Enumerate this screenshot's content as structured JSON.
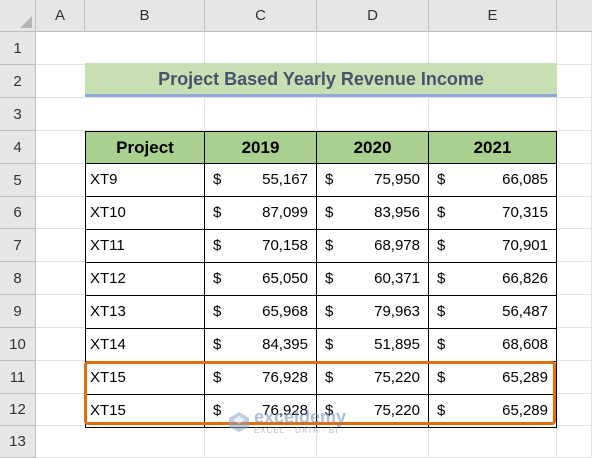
{
  "columns": [
    "A",
    "B",
    "C",
    "D",
    "E"
  ],
  "rows": [
    "1",
    "2",
    "3",
    "4",
    "5",
    "6",
    "7",
    "8",
    "9",
    "10",
    "11",
    "12",
    "13"
  ],
  "title": "Project Based Yearly Revenue Income",
  "table": {
    "headers": [
      "Project",
      "2019",
      "2020",
      "2021"
    ],
    "currency": "$",
    "data": [
      [
        "XT9",
        "55,167",
        "75,950",
        "66,085"
      ],
      [
        "XT10",
        "87,099",
        "83,956",
        "70,315"
      ],
      [
        "XT11",
        "70,158",
        "68,978",
        "70,901"
      ],
      [
        "XT12",
        "65,050",
        "60,371",
        "66,826"
      ],
      [
        "XT13",
        "65,968",
        "79,963",
        "56,487"
      ],
      [
        "XT14",
        "84,395",
        "51,895",
        "68,608"
      ],
      [
        "XT15",
        "76,928",
        "75,220",
        "65,289"
      ],
      [
        "XT15",
        "76,928",
        "75,220",
        "65,289"
      ]
    ]
  },
  "watermark": {
    "name": "exceldemy",
    "tagline": "EXCEL · DATA · BI"
  },
  "colors": {
    "header_fill": "#a9d08e",
    "title_fill": "#c6e0b4",
    "highlight": "#e46c0a"
  }
}
